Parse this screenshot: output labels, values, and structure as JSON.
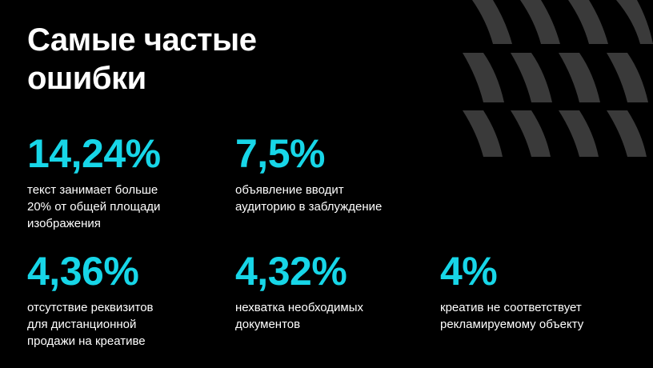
{
  "title": {
    "line1": "Самые частые",
    "line2": "ошибки"
  },
  "accent_color": "#17d6e8",
  "decoration": {
    "shape": "dark-gray-curved-stripes",
    "color": "#3a3a3a"
  },
  "stats": [
    {
      "value": "14,24%",
      "lines": [
        "текст занимает больше",
        "20% от общей площади",
        "изображения"
      ]
    },
    {
      "value": "7,5%",
      "lines": [
        "объявление вводит",
        "аудиторию в заблуждение"
      ]
    },
    {
      "value": "4,36%",
      "lines": [
        "отсутствие реквизитов",
        "для дистанционной",
        "продажи на креативе"
      ]
    },
    {
      "value": "4,32%",
      "lines": [
        "нехватка необходимых",
        "документов"
      ]
    },
    {
      "value": "4%",
      "lines": [
        "креатив не соответствует",
        "рекламируемому объекту"
      ]
    }
  ]
}
